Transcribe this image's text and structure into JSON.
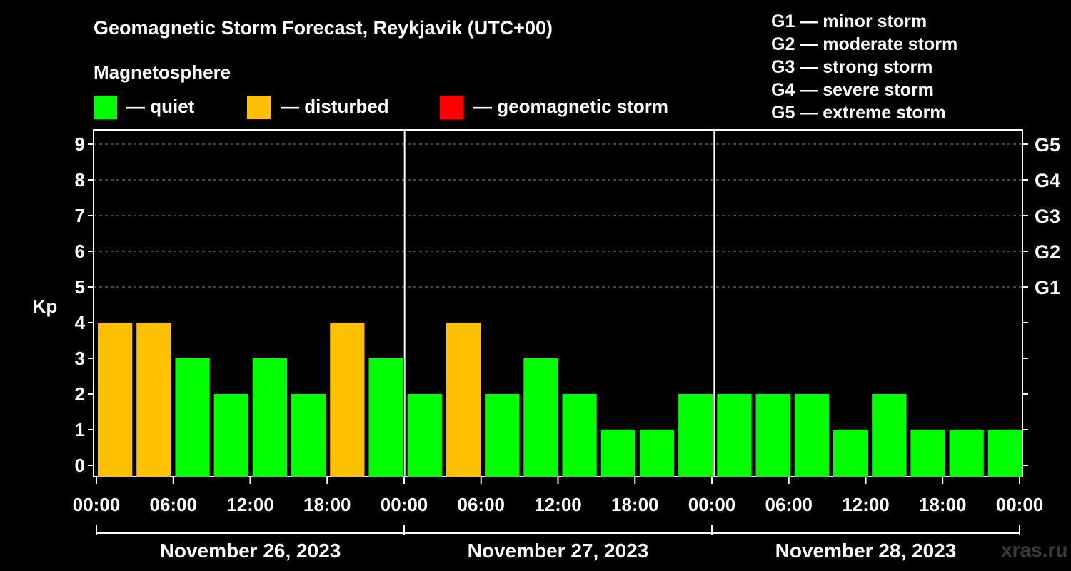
{
  "header": {
    "title": "Geomagnetic Storm Forecast, Reykjavik (UTC+00)",
    "magnetosphere_label": "Magnetosphere"
  },
  "legend": {
    "quiet": {
      "label": "— quiet",
      "color": "#00ff00"
    },
    "disturbed": {
      "label": "— disturbed",
      "color": "#ffc000"
    },
    "storm": {
      "label": "— geomagnetic storm",
      "color": "#ff0000"
    }
  },
  "g_scale_legend": [
    "G1 — minor storm",
    "G2 — moderate storm",
    "G3 — strong storm",
    "G4 — severe storm",
    "G5 — extreme storm"
  ],
  "watermark": "xras.ru",
  "chart_data": {
    "type": "bar",
    "ylabel": "Kp",
    "ylim": [
      0,
      9
    ],
    "yticks": [
      0,
      1,
      2,
      3,
      4,
      5,
      6,
      7,
      8,
      9
    ],
    "right_axis_labels": [
      {
        "kp": 5,
        "label": "G1"
      },
      {
        "kp": 6,
        "label": "G2"
      },
      {
        "kp": 7,
        "label": "G3"
      },
      {
        "kp": 8,
        "label": "G4"
      },
      {
        "kp": 9,
        "label": "G5"
      }
    ],
    "x_tick_labels": [
      "00:00",
      "06:00",
      "12:00",
      "18:00",
      "00:00",
      "06:00",
      "12:00",
      "18:00",
      "00:00",
      "06:00",
      "12:00",
      "18:00",
      "00:00"
    ],
    "days": [
      "November 26, 2023",
      "November 27, 2023",
      "November 28, 2023"
    ],
    "grid": "horizontal dashed at Kp 5–9",
    "values": [
      4,
      4,
      3,
      2,
      3,
      2,
      4,
      3,
      2,
      4,
      2,
      3,
      2,
      1,
      1,
      2,
      2,
      2,
      2,
      1,
      2,
      1,
      1,
      1
    ],
    "status": [
      "disturbed",
      "disturbed",
      "quiet",
      "quiet",
      "quiet",
      "quiet",
      "disturbed",
      "quiet",
      "quiet",
      "disturbed",
      "quiet",
      "quiet",
      "quiet",
      "quiet",
      "quiet",
      "quiet",
      "quiet",
      "quiet",
      "quiet",
      "quiet",
      "quiet",
      "quiet",
      "quiet",
      "quiet"
    ]
  }
}
